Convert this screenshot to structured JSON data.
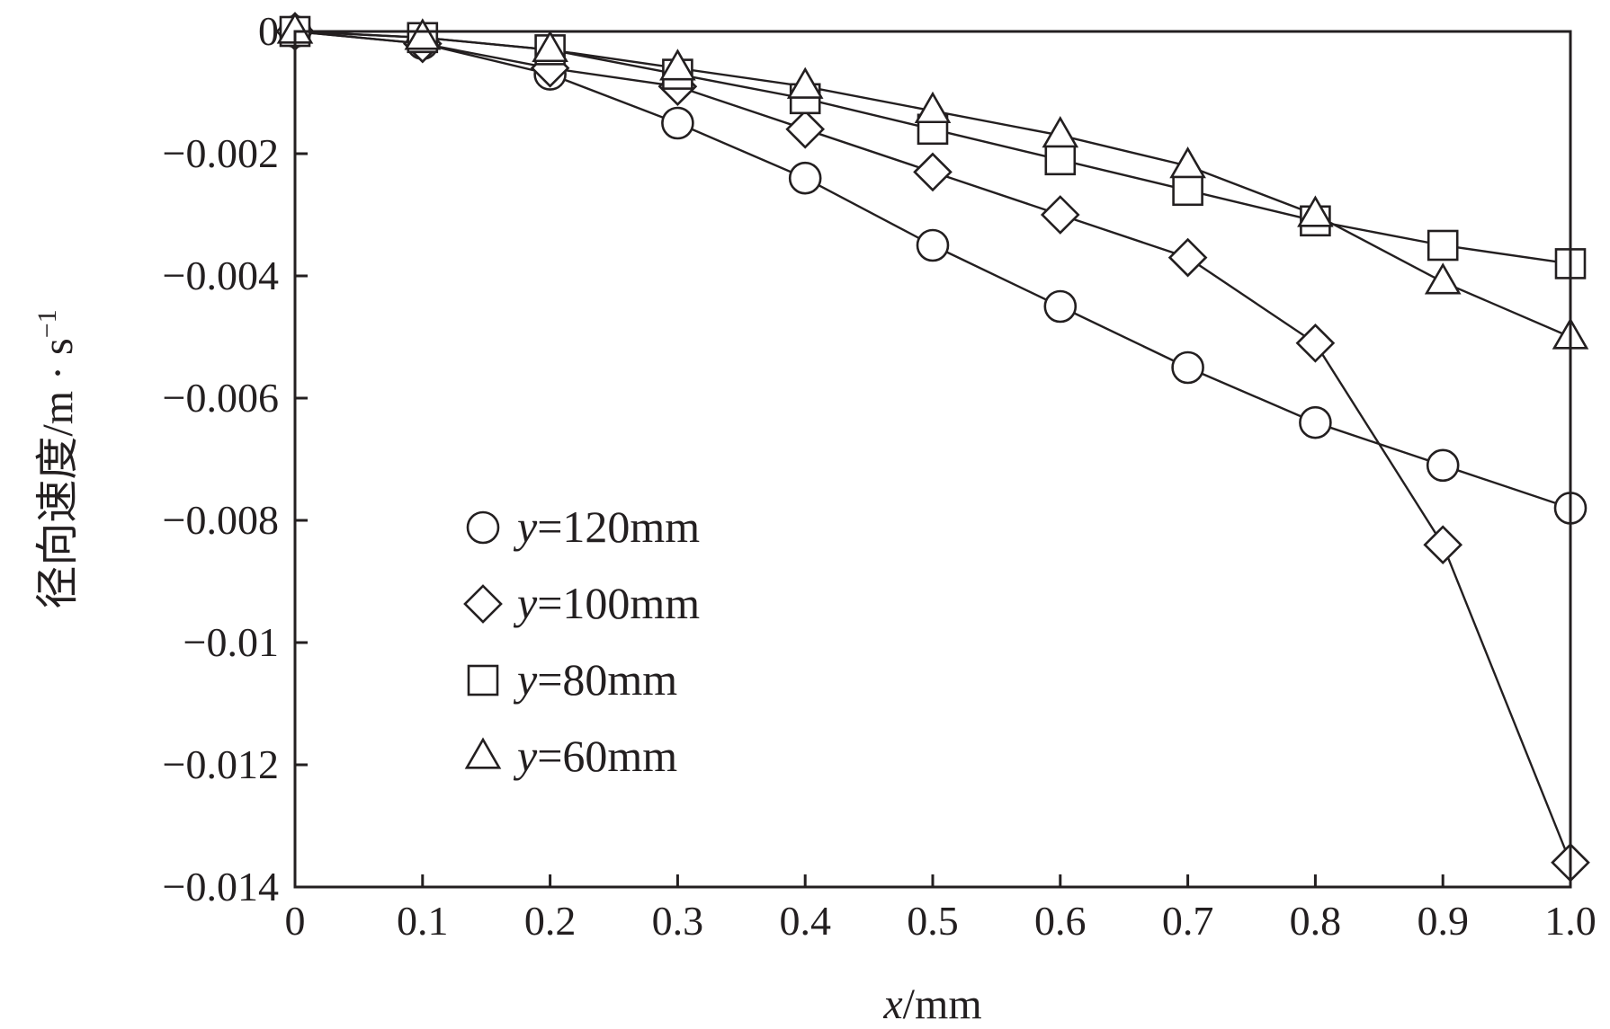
{
  "chart_data": {
    "type": "line",
    "xlabel_var": "x",
    "xlabel_unit": "/mm",
    "ylabel_main": "径向速度/m · s",
    "ylabel_sup": "−1",
    "xlim": [
      0,
      1.0
    ],
    "ylim": [
      -0.014,
      0
    ],
    "x_ticks": [
      "0",
      "0.1",
      "0.2",
      "0.3",
      "0.4",
      "0.5",
      "0.6",
      "0.7",
      "0.8",
      "0.9",
      "1.0"
    ],
    "y_ticks": [
      "0",
      "−0.002",
      "−0.004",
      "−0.006",
      "−0.008",
      "−0.01",
      "−0.012",
      "−0.014"
    ],
    "y_tick_values": [
      0,
      -0.002,
      -0.004,
      -0.006,
      -0.008,
      -0.01,
      -0.012,
      -0.014
    ],
    "x": [
      0,
      0.1,
      0.2,
      0.3,
      0.4,
      0.5,
      0.6,
      0.7,
      0.8,
      0.9,
      1.0
    ],
    "grid": false,
    "legend_position": "lower-left inside",
    "series": [
      {
        "name_var": "y",
        "name_rest": "=120mm",
        "marker": "circle",
        "values": [
          0,
          -0.0002,
          -0.0007,
          -0.0015,
          -0.0024,
          -0.0035,
          -0.0045,
          -0.0055,
          -0.0064,
          -0.0071,
          -0.0078
        ]
      },
      {
        "name_var": "y",
        "name_rest": "=100mm",
        "marker": "diamond",
        "values": [
          0,
          -0.0002,
          -0.0006,
          -0.0009,
          -0.0016,
          -0.0023,
          -0.003,
          -0.0037,
          -0.0051,
          -0.0084,
          -0.0136
        ]
      },
      {
        "name_var": "y",
        "name_rest": "=80mm",
        "marker": "square",
        "values": [
          0,
          -0.0001,
          -0.0003,
          -0.0007,
          -0.0011,
          -0.0016,
          -0.0021,
          -0.0026,
          -0.0031,
          -0.0035,
          -0.0038
        ]
      },
      {
        "name_var": "y",
        "name_rest": "=60mm",
        "marker": "triangle",
        "values": [
          0,
          -0.0001,
          -0.0003,
          -0.0006,
          -0.0009,
          -0.0013,
          -0.0017,
          -0.0022,
          -0.003,
          -0.0041,
          -0.005
        ]
      }
    ]
  }
}
